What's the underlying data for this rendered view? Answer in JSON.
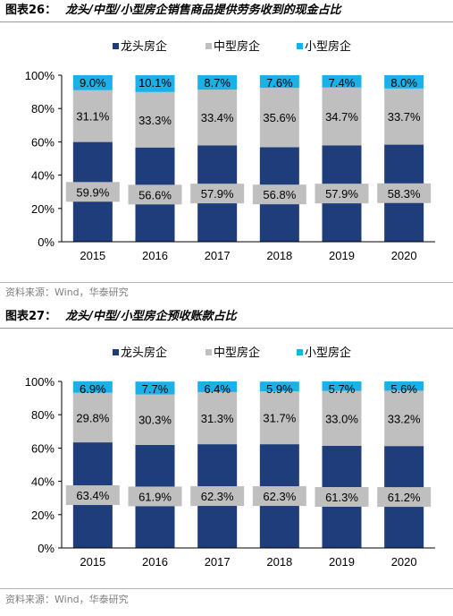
{
  "page": {
    "colors": {
      "rule": "#9a9a9a",
      "source_text": "#7f7f7f"
    }
  },
  "figures": [
    {
      "number": "图表26：",
      "title": "龙头/中型/小型房企销售商品提供劳务收到的现金占比",
      "source": "资料来源：Wind，华泰研究",
      "chart_data": {
        "type": "bar",
        "stacked": true,
        "categories": [
          "2015",
          "2016",
          "2017",
          "2018",
          "2019",
          "2020"
        ],
        "series": [
          {
            "name": "龙头房企",
            "color": "#1f3d7a",
            "values": [
              59.9,
              56.6,
              57.9,
              56.8,
              57.9,
              58.3
            ],
            "labels": [
              "59.9%",
              "56.6%",
              "57.9%",
              "56.8%",
              "57.9%",
              "58.3%"
            ]
          },
          {
            "name": "中型房企",
            "color": "#bfbfbf",
            "values": [
              31.1,
              33.3,
              33.4,
              35.6,
              34.7,
              33.7
            ],
            "labels": [
              "31.1%",
              "33.3%",
              "33.4%",
              "35.6%",
              "34.7%",
              "33.7%"
            ]
          },
          {
            "name": "小型房企",
            "color": "#1ab0e8",
            "values": [
              9.0,
              10.1,
              8.7,
              7.6,
              7.4,
              8.0
            ],
            "labels": [
              "9.0%",
              "10.1%",
              "8.7%",
              "7.6%",
              "7.4%",
              "8.0%"
            ]
          }
        ],
        "y_ticks": [
          "0%",
          "20%",
          "40%",
          "60%",
          "80%",
          "100%"
        ],
        "ylim": [
          0,
          100
        ],
        "legend": "top-center",
        "grid": false
      }
    },
    {
      "number": "图表27：",
      "title": "龙头/中型/小型房企预收账款占比",
      "source": "资料来源：Wind，华泰研究",
      "chart_data": {
        "type": "bar",
        "stacked": true,
        "categories": [
          "2015",
          "2016",
          "2017",
          "2018",
          "2019",
          "2020"
        ],
        "series": [
          {
            "name": "龙头房企",
            "color": "#1f3d7a",
            "values": [
              63.4,
              61.9,
              62.3,
              62.3,
              61.3,
              61.2
            ],
            "labels": [
              "63.4%",
              "61.9%",
              "62.3%",
              "62.3%",
              "61.3%",
              "61.2%"
            ]
          },
          {
            "name": "中型房企",
            "color": "#bfbfbf",
            "values": [
              29.8,
              30.3,
              31.3,
              31.7,
              33.0,
              33.2
            ],
            "labels": [
              "29.8%",
              "30.3%",
              "31.3%",
              "31.7%",
              "33.0%",
              "33.2%"
            ]
          },
          {
            "name": "小型房企",
            "color": "#1ab0e8",
            "values": [
              6.9,
              7.7,
              6.4,
              5.9,
              5.7,
              5.6
            ],
            "labels": [
              "6.9%",
              "7.7%",
              "6.4%",
              "5.9%",
              "5.7%",
              "5.6%"
            ]
          }
        ],
        "y_ticks": [
          "0%",
          "20%",
          "40%",
          "60%",
          "80%",
          "100%"
        ],
        "ylim": [
          0,
          100
        ],
        "legend": "top-center",
        "grid": false
      }
    }
  ]
}
